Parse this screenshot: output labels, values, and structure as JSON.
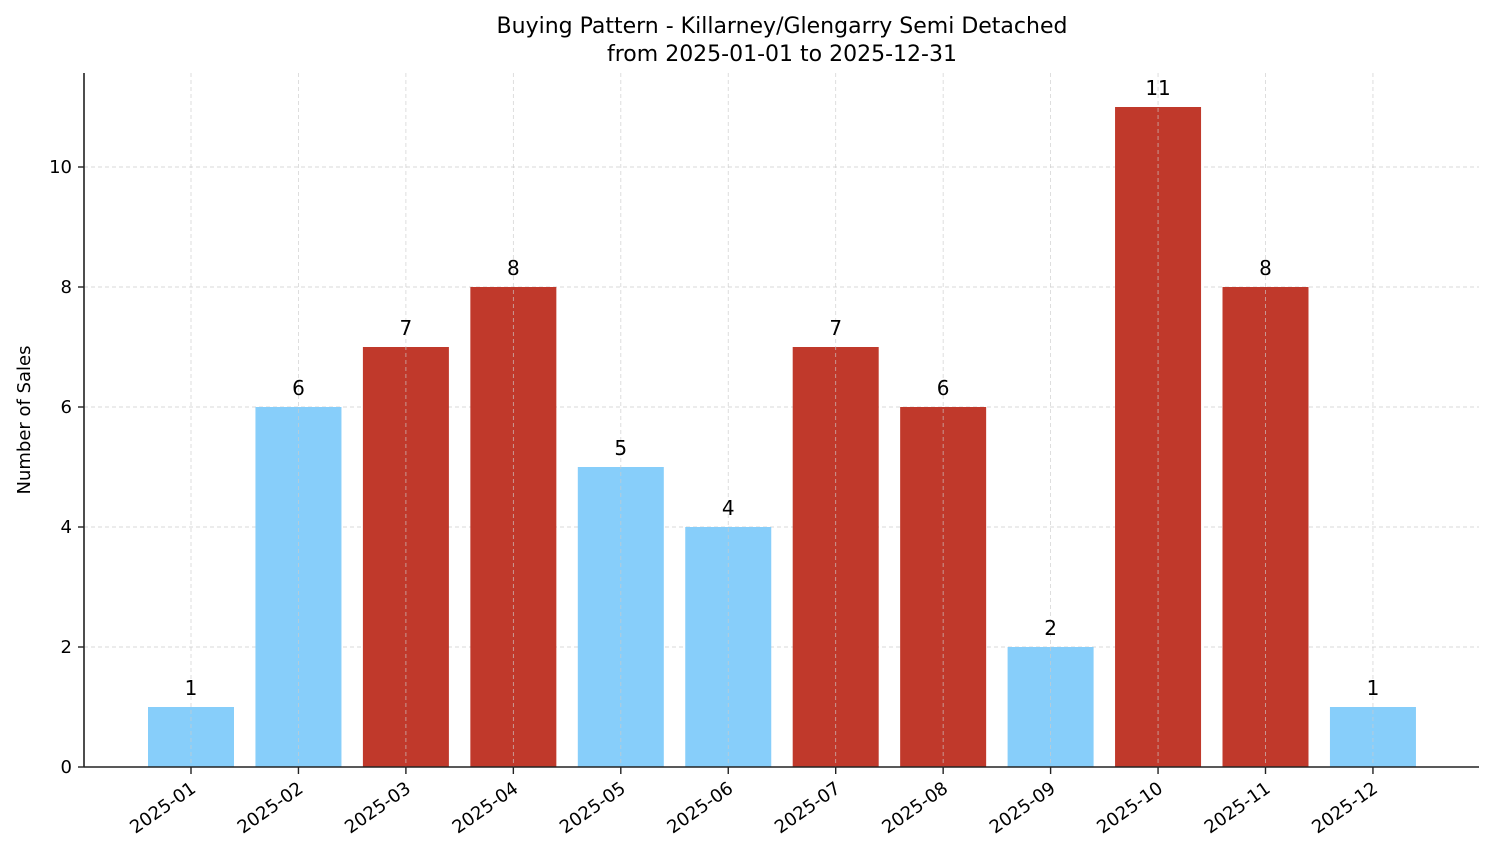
{
  "chart_data": {
    "type": "bar",
    "title": "Buying Pattern - Killarney/Glengarry Semi Detached",
    "subtitle": "from 2025-01-01 to 2025-12-31",
    "xlabel": "",
    "ylabel": "Number of Sales",
    "categories": [
      "2025-01",
      "2025-02",
      "2025-03",
      "2025-04",
      "2025-05",
      "2025-06",
      "2025-07",
      "2025-08",
      "2025-09",
      "2025-10",
      "2025-11",
      "2025-12"
    ],
    "values": [
      1,
      6,
      7,
      8,
      5,
      4,
      7,
      6,
      2,
      11,
      8,
      1
    ],
    "bar_colors": [
      "#87CEFA",
      "#87CEFA",
      "#C0392B",
      "#C0392B",
      "#87CEFA",
      "#87CEFA",
      "#C0392B",
      "#C0392B",
      "#87CEFA",
      "#C0392B",
      "#C0392B",
      "#87CEFA"
    ],
    "yticks": [
      0,
      2,
      4,
      6,
      8,
      10
    ],
    "ylim": [
      0,
      11.55
    ],
    "grid": true,
    "legend": null,
    "data_labels": true
  },
  "colors": {
    "low": "#87CEFA",
    "high": "#C0392B",
    "axis": "#222222",
    "grid": "#cccccc"
  }
}
